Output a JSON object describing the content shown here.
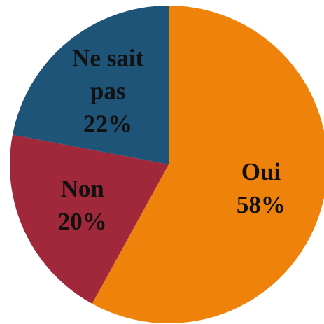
{
  "chart_data": {
    "type": "pie",
    "categories": [
      "Oui",
      "Non",
      "Ne sait pas"
    ],
    "values": [
      58,
      20,
      22
    ],
    "value_labels": [
      "58%",
      "20%",
      "22%"
    ],
    "colors": [
      "#ef820b",
      "#a0283a",
      "#1e5478"
    ]
  }
}
